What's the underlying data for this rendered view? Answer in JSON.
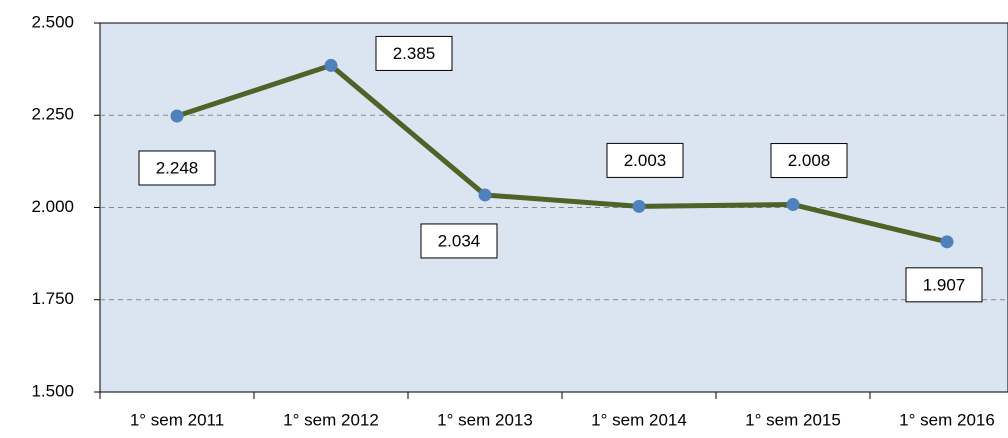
{
  "chart_data": {
    "type": "line",
    "categories": [
      "1° sem 2011",
      "1° sem 2012",
      "1° sem 2013",
      "1° sem 2014",
      "1° sem 2015",
      "1° sem 2016"
    ],
    "series": [
      {
        "color": "#4f6228",
        "marker_color": "#4f81bd",
        "values": [
          2248,
          2385,
          2034,
          2003,
          2008,
          1907
        ],
        "value_labels": [
          "2.248",
          "2.385",
          "2.034",
          "2.003",
          "2.008",
          "1.907"
        ]
      }
    ],
    "ylim": [
      1500,
      2500
    ],
    "yticks": [
      {
        "value": 1500,
        "label": "1.500"
      },
      {
        "value": 1750,
        "label": "1.750"
      },
      {
        "value": 2000,
        "label": "2.000"
      },
      {
        "value": 2250,
        "label": "2.250"
      },
      {
        "value": 2500,
        "label": "2.500"
      }
    ],
    "grid": true
  }
}
